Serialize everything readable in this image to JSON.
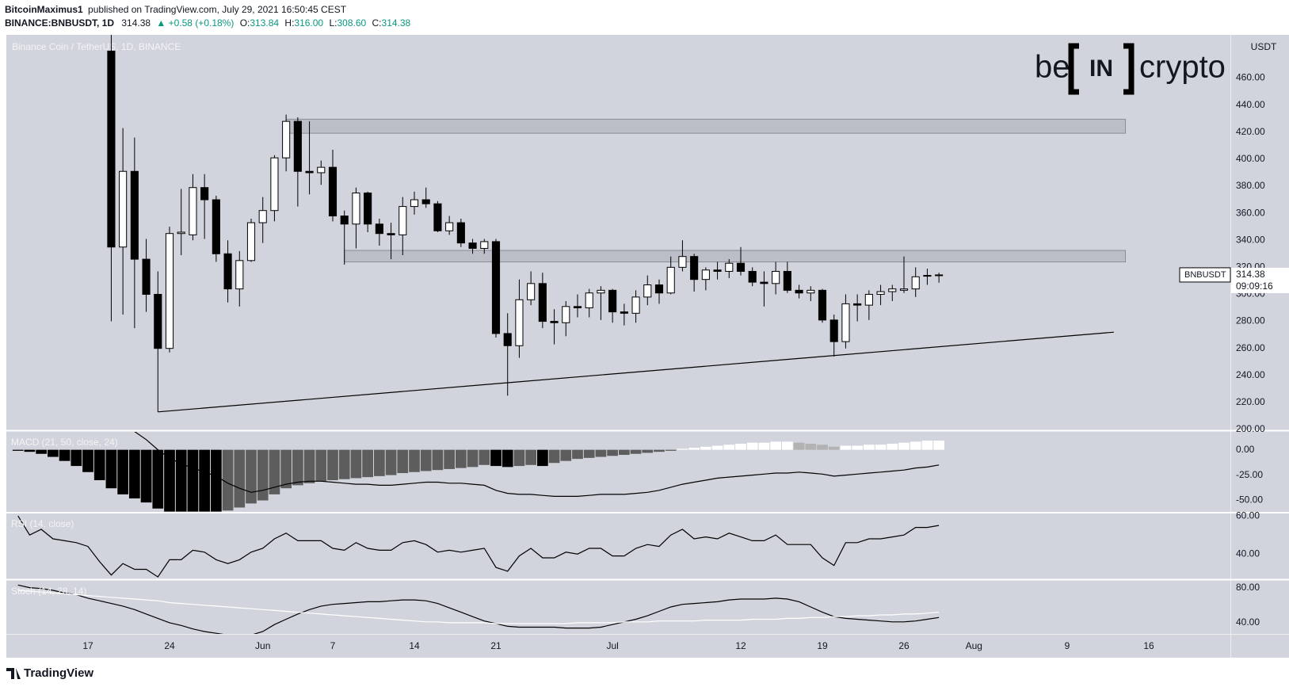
{
  "header": {
    "author": "BitcoinMaximus1",
    "published": "published on TradingView.com, July 29, 2021 16:50:45 CEST",
    "symbol": "BINANCE:BNBUSDT, 1D",
    "last": "314.38",
    "change": "▲ +0.58 (+0.18%)",
    "quote": [
      {
        "label": "O:",
        "value": "313.84"
      },
      {
        "label": "H:",
        "value": "316.00"
      },
      {
        "label": "L:",
        "value": "308.60"
      },
      {
        "label": "C:",
        "value": "314.38"
      }
    ]
  },
  "logo": {
    "left": "be",
    "middle": "IN",
    "right": "crypto"
  },
  "footer": "TradingView",
  "chart_data": {
    "type": "candlestick",
    "title": "Binance Coin / TetherUS, 1D, BINANCE",
    "y_axis_label": "USDT",
    "symbol": "BNBUSDT",
    "countdown": "09:09:16",
    "up_color": "#ffffff",
    "down_color": "#000000",
    "grid": false,
    "x": [
      "2021-05-11",
      "2021-05-12",
      "2021-05-13",
      "2021-05-14",
      "2021-05-15",
      "2021-05-16",
      "2021-05-17",
      "2021-05-18",
      "2021-05-19",
      "2021-05-20",
      "2021-05-21",
      "2021-05-22",
      "2021-05-23",
      "2021-05-24",
      "2021-05-25",
      "2021-05-26",
      "2021-05-27",
      "2021-05-28",
      "2021-05-29",
      "2021-05-30",
      "2021-05-31",
      "2021-06-01",
      "2021-06-02",
      "2021-06-03",
      "2021-06-04",
      "2021-06-05",
      "2021-06-06",
      "2021-06-07",
      "2021-06-08",
      "2021-06-09",
      "2021-06-10",
      "2021-06-11",
      "2021-06-12",
      "2021-06-13",
      "2021-06-14",
      "2021-06-15",
      "2021-06-16",
      "2021-06-17",
      "2021-06-18",
      "2021-06-19",
      "2021-06-20",
      "2021-06-21",
      "2021-06-22",
      "2021-06-23",
      "2021-06-24",
      "2021-06-25",
      "2021-06-26",
      "2021-06-27",
      "2021-06-28",
      "2021-06-29",
      "2021-06-30",
      "2021-07-01",
      "2021-07-02",
      "2021-07-03",
      "2021-07-04",
      "2021-07-05",
      "2021-07-06",
      "2021-07-07",
      "2021-07-08",
      "2021-07-09",
      "2021-07-10",
      "2021-07-11",
      "2021-07-12",
      "2021-07-13",
      "2021-07-14",
      "2021-07-15",
      "2021-07-16",
      "2021-07-17",
      "2021-07-18",
      "2021-07-19",
      "2021-07-20",
      "2021-07-21",
      "2021-07-22",
      "2021-07-23",
      "2021-07-24",
      "2021-07-25",
      "2021-07-26",
      "2021-07-27",
      "2021-07-28",
      "2021-07-29"
    ],
    "open": [
      null,
      null,
      null,
      null,
      null,
      null,
      null,
      null,
      480,
      335,
      391,
      326,
      300,
      260,
      345,
      344,
      379,
      370,
      330,
      304,
      325,
      353,
      362,
      401,
      428,
      391,
      390,
      394,
      358,
      352,
      375,
      352,
      345,
      344,
      365,
      370,
      367,
      347,
      353,
      338,
      334,
      339,
      271,
      262,
      296,
      308,
      280,
      279,
      291,
      290,
      301,
      303,
      287,
      286,
      298,
      307,
      301,
      320,
      328,
      311,
      318,
      317,
      323,
      317,
      309,
      308,
      317,
      303,
      301,
      303,
      281,
      265,
      293,
      292,
      300,
      302,
      303,
      304,
      313.8,
      313.84
    ],
    "high": [
      null,
      null,
      null,
      null,
      null,
      null,
      null,
      null,
      500,
      423,
      416,
      341,
      317,
      350,
      378,
      389,
      389,
      373,
      340,
      332,
      356,
      372,
      403,
      433,
      431,
      428,
      399,
      407,
      362,
      379,
      376,
      356,
      353,
      372,
      376,
      379,
      369,
      358,
      356,
      341,
      341,
      341,
      286,
      311,
      317,
      316,
      289,
      295,
      300,
      304,
      306,
      304,
      293,
      303,
      314,
      311,
      328,
      340,
      330,
      320,
      324,
      326,
      335,
      320,
      317,
      324,
      324,
      307,
      306,
      304,
      285,
      300,
      300,
      303,
      307,
      307,
      328,
      320,
      319,
      316
    ],
    "low": [
      null,
      null,
      null,
      null,
      null,
      null,
      null,
      null,
      280,
      285,
      275,
      287,
      213,
      257,
      329,
      340,
      341,
      324,
      294,
      291,
      324,
      338,
      354,
      391,
      365,
      374,
      381,
      354,
      322,
      334,
      346,
      336,
      326,
      329,
      359,
      364,
      346,
      344,
      335,
      330,
      330,
      268,
      225,
      253,
      292,
      275,
      263,
      269,
      283,
      283,
      281,
      279,
      277,
      279,
      292,
      293,
      300,
      317,
      302,
      303,
      311,
      312,
      314,
      306,
      291,
      300,
      301,
      297,
      295,
      279,
      254,
      260,
      280,
      281,
      292,
      295,
      301,
      298,
      307,
      308.6
    ],
    "close": [
      null,
      null,
      null,
      null,
      null,
      null,
      null,
      null,
      335,
      391,
      326,
      300,
      260,
      345,
      346,
      379,
      370,
      330,
      304,
      325,
      353,
      362,
      401,
      428,
      391,
      390,
      394,
      358,
      352,
      375,
      352,
      345,
      344,
      365,
      370,
      367,
      347,
      353,
      338,
      334,
      339,
      271,
      262,
      296,
      308,
      280,
      279,
      291,
      290,
      301,
      303,
      287,
      286,
      298,
      307,
      301,
      320,
      328,
      311,
      318,
      317,
      323,
      317,
      309,
      308,
      317,
      303,
      301,
      303,
      281,
      265,
      293,
      292,
      300,
      302,
      304,
      304,
      313,
      314,
      314.38
    ],
    "xlim": [
      "2021-05-10",
      "2021-08-23"
    ],
    "xticks": [
      {
        "value": "2021-05-17",
        "label": "17"
      },
      {
        "value": "2021-05-24",
        "label": "24"
      },
      {
        "value": "2021-06-01",
        "label": "Jun"
      },
      {
        "value": "2021-06-07",
        "label": "7"
      },
      {
        "value": "2021-06-14",
        "label": "14"
      },
      {
        "value": "2021-06-21",
        "label": "21"
      },
      {
        "value": "2021-07-01",
        "label": "Jul"
      },
      {
        "value": "2021-07-12",
        "label": "12"
      },
      {
        "value": "2021-07-19",
        "label": "19"
      },
      {
        "value": "2021-07-26",
        "label": "26"
      },
      {
        "value": "2021-08-01",
        "label": "Aug"
      },
      {
        "value": "2021-08-09",
        "label": "9"
      },
      {
        "value": "2021-08-16",
        "label": "16"
      }
    ],
    "ylim": [
      200,
      492
    ],
    "yticks": [
      {
        "value": 200,
        "label": "200.00"
      },
      {
        "value": 220,
        "label": "220.00"
      },
      {
        "value": 240,
        "label": "240.00"
      },
      {
        "value": 260,
        "label": "260.00"
      },
      {
        "value": 280,
        "label": "280.00"
      },
      {
        "value": 300,
        "label": "300.00"
      },
      {
        "value": 320,
        "label": "320.00"
      },
      {
        "value": 340,
        "label": "340.00"
      },
      {
        "value": 360,
        "label": "360.00"
      },
      {
        "value": 380,
        "label": "380.00"
      },
      {
        "value": 400,
        "label": "400.00"
      },
      {
        "value": 420,
        "label": "420.00"
      },
      {
        "value": 440,
        "label": "440.00"
      },
      {
        "value": 460,
        "label": "460.00"
      }
    ],
    "zones": [
      {
        "start": "2021-06-03",
        "end": "2021-08-14",
        "low": 419.2,
        "high": 429.6,
        "color": "#b2b5be"
      },
      {
        "start": "2021-06-08",
        "end": "2021-08-14",
        "low": 324,
        "high": 332.5,
        "color": "#b2b5be"
      }
    ],
    "trendline": {
      "x": [
        "2021-05-23",
        "2021-08-13"
      ],
      "y": [
        213,
        272
      ],
      "color": "#000000"
    },
    "indicators": [
      {
        "type": "macd",
        "title": "MACD (21, 50, close, 24)",
        "histogram": [
          -1,
          -2,
          -4,
          -7,
          -11,
          -16,
          -22,
          -30,
          -38,
          -44,
          -48,
          -52,
          -58,
          -61,
          -61,
          -61,
          -61,
          -61,
          -60,
          -57,
          -53,
          -50,
          -44,
          -38,
          -35,
          -33,
          -31,
          -30,
          -29,
          -28,
          -27,
          -26,
          -25,
          -23,
          -22,
          -21,
          -20,
          -19,
          -18,
          -17,
          -15,
          -16,
          -17,
          -16,
          -15,
          -16,
          -13,
          -11,
          -9,
          -8,
          -7,
          -6,
          -5,
          -4,
          -3,
          -2,
          -1,
          1,
          2,
          3,
          4,
          5,
          6,
          7,
          7,
          8,
          8,
          7,
          6,
          5,
          3,
          4,
          4,
          5,
          5,
          6,
          7,
          8,
          9,
          9
        ],
        "histogram_colors": {
          "falling_below": "#000000",
          "rising_below": "#5d5d5d",
          "rising_above": "#ffffff",
          "falling_above": "#b2b2b2"
        },
        "line": [
          null,
          null,
          null,
          null,
          null,
          null,
          null,
          null,
          null,
          null,
          18,
          10,
          0,
          -8,
          -14,
          -18,
          -22,
          -26,
          -33,
          -38,
          -42,
          -40,
          -37,
          -34,
          -32,
          -31,
          -31,
          -32,
          -33,
          -34,
          -34,
          -35,
          -35,
          -34,
          -33,
          -32,
          -32,
          -33,
          -33,
          -34,
          -35,
          -40,
          -43,
          -44,
          -44,
          -45,
          -46,
          -46,
          -46,
          -45,
          -44,
          -44,
          -44,
          -43,
          -42,
          -40,
          -37,
          -34,
          -32,
          -30,
          -28,
          -27,
          -26,
          -25,
          -24,
          -23,
          -23,
          -22,
          -23,
          -24,
          -26,
          -25,
          -24,
          -23,
          -22,
          -21,
          -20,
          -18,
          -17,
          -15
        ],
        "line_color": "#000000",
        "ylim": [
          -61.3,
          17.7
        ],
        "yticks": [
          {
            "value": 0,
            "label": "0.00"
          },
          {
            "value": -25,
            "label": "-25.00"
          },
          {
            "value": -50,
            "label": "-50.00"
          }
        ]
      },
      {
        "type": "line",
        "title": "RSI (14, close)",
        "series": [
          {
            "color": "#000000",
            "values": [
              60,
              50,
              53,
              48,
              47,
              46,
              44,
              36,
              29,
              35,
              32,
              32,
              28,
              37,
              37,
              42,
              41,
              37,
              35,
              37,
              41,
              43,
              48,
              51,
              47,
              47,
              47,
              43,
              42,
              46,
              43,
              42,
              42,
              46,
              47,
              45,
              41,
              42,
              41,
              42,
              43,
              33,
              31,
              39,
              43,
              38,
              38,
              41,
              40,
              43,
              43,
              39,
              39,
              43,
              45,
              44,
              50,
              53,
              48,
              49,
              48,
              51,
              49,
              47,
              47,
              50,
              45,
              45,
              45,
              38,
              34,
              46,
              46,
              48,
              48,
              49,
              50,
              54,
              54,
              55
            ]
          }
        ],
        "ylim": [
          27.2,
          61.3
        ],
        "yticks": [
          {
            "value": 60,
            "label": "60.00"
          },
          {
            "value": 40,
            "label": "40.00"
          }
        ]
      },
      {
        "type": "line",
        "title": "Stoch (14, 28, 14)",
        "series": [
          {
            "color": "#000000",
            "values": [
              83,
              80,
              79,
              77,
              74,
              72,
              68,
              65,
              62,
              59,
              55,
              50,
              45,
              40,
              37,
              33,
              30,
              28,
              26,
              25,
              26,
              30,
              38,
              44,
              50,
              55,
              59,
              61,
              62,
              63,
              64,
              64,
              65,
              66,
              66,
              65,
              62,
              57,
              52,
              47,
              42,
              39,
              36,
              35,
              35,
              35,
              35,
              34,
              34,
              34,
              35,
              38,
              41,
              44,
              48,
              53,
              58,
              61,
              62,
              63,
              64,
              66,
              67,
              67,
              67,
              68,
              67,
              64,
              58,
              52,
              47,
              45,
              44,
              43,
              42,
              41,
              41,
              42,
              44,
              46
            ]
          },
          {
            "color": "#ffffff",
            "values": [
              77,
              76,
              75,
              74,
              73,
              72,
              71,
              70,
              69,
              68,
              67,
              66,
              65,
              63,
              62,
              61,
              60,
              59,
              58,
              57,
              56,
              55,
              54,
              53,
              52,
              51,
              50,
              49,
              48,
              47,
              46,
              45,
              44,
              43,
              42,
              41,
              41,
              40,
              40,
              40,
              40,
              39,
              39,
              39,
              39,
              39,
              39,
              39,
              40,
              40,
              40,
              40,
              41,
              41,
              41,
              42,
              42,
              42,
              42,
              43,
              43,
              43,
              43,
              44,
              44,
              44,
              45,
              45,
              46,
              46,
              47,
              47,
              48,
              48,
              49,
              49,
              50,
              50,
              51,
              52
            ]
          }
        ],
        "ylim": [
          27.3,
          87.8
        ],
        "yticks": [
          {
            "value": 80,
            "label": "80.00"
          },
          {
            "value": 40,
            "label": "40.00"
          }
        ]
      }
    ]
  }
}
